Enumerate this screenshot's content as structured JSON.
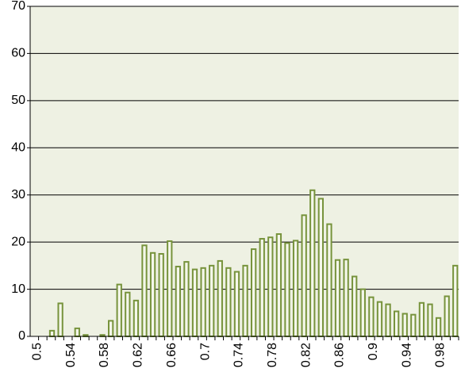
{
  "chart_data": {
    "type": "bar",
    "categories": [
      "0.5",
      null,
      null,
      null,
      "0.54",
      null,
      null,
      null,
      "0.58",
      null,
      null,
      null,
      "0.62",
      null,
      null,
      null,
      "0.66",
      null,
      null,
      null,
      "0.7",
      null,
      null,
      null,
      "0.74",
      null,
      null,
      null,
      "0.78",
      null,
      null,
      null,
      "0.82",
      null,
      null,
      null,
      "0.86",
      null,
      null,
      null,
      "0.9",
      null,
      null,
      null,
      "0.94",
      null,
      null,
      null,
      "0.98",
      null,
      null
    ],
    "values": [
      0,
      0,
      1.2,
      7,
      0,
      1.7,
      0.3,
      0,
      0.3,
      3.3,
      11,
      9.3,
      7.6,
      19.3,
      17.7,
      17.5,
      20.2,
      14.8,
      15.8,
      14.2,
      14.5,
      15,
      16,
      14.5,
      13.7,
      15,
      18.5,
      20.7,
      21,
      21.7,
      19.8,
      20.3,
      25.7,
      31,
      29.2,
      23.8,
      16.2,
      16.3,
      12.7,
      10,
      8.3,
      7.3,
      6.8,
      5.3,
      4.8,
      4.6,
      7.1,
      6.8,
      3.9,
      8.5,
      15
    ],
    "color": "#77933c",
    "ylim": [
      0,
      70
    ],
    "yticks": [
      0,
      10,
      20,
      30,
      40,
      50,
      60,
      70
    ],
    "grid": true
  }
}
